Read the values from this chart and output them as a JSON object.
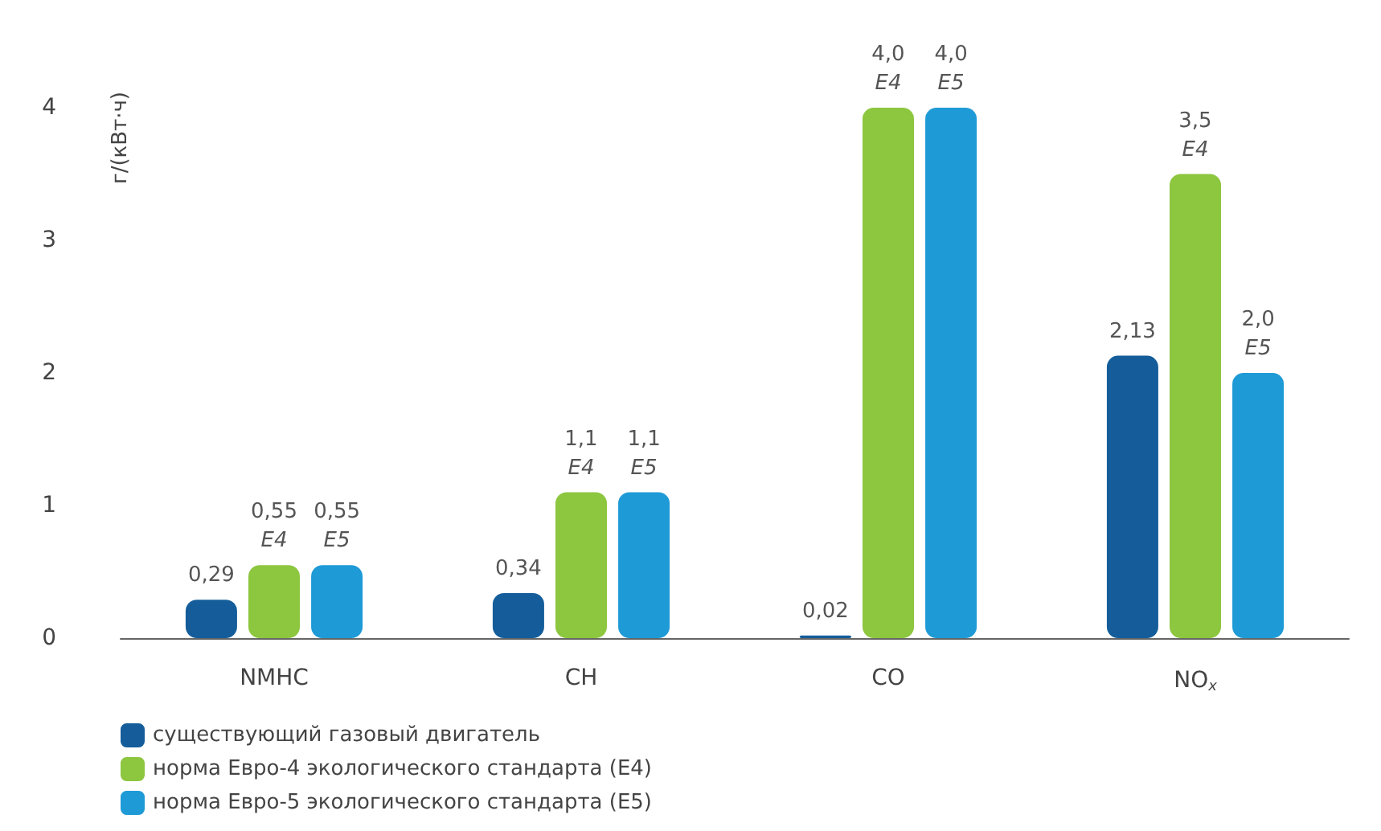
{
  "chart_data": {
    "type": "bar",
    "ylabel": "г/(кВт·ч)",
    "categories": [
      "NMHC",
      "CH",
      "CO",
      "NO$_{x}$"
    ],
    "series": [
      {
        "name": "существующий газовый двигатель",
        "color": "#145d9a",
        "values": [
          0.29,
          0.34,
          0.02,
          2.13
        ],
        "value_labels": [
          "0,29",
          "0,34",
          "0,02",
          "2,13"
        ]
      },
      {
        "name": "норма Евро-4 экологического стандарта (E4)",
        "color": "#8dc63f",
        "values": [
          0.55,
          1.1,
          4.0,
          3.5
        ],
        "value_labels": [
          "0,55\nE4",
          "1,1\nE4",
          "4,0\nE4",
          "3,5\nE4"
        ]
      },
      {
        "name": "норма Евро-5 экологического стандарта (E5)",
        "color": "#1e9ad6",
        "values": [
          0.55,
          1.1,
          4.0,
          2.0
        ],
        "value_labels": [
          "0,55\nE5",
          "1,1\nE5",
          "4,0\nE5",
          "2,0\nE5"
        ]
      }
    ],
    "ylim": [
      0,
      4
    ],
    "yticks": [
      0,
      1,
      2,
      3,
      4
    ],
    "grid": false,
    "legend": "bottom left"
  }
}
